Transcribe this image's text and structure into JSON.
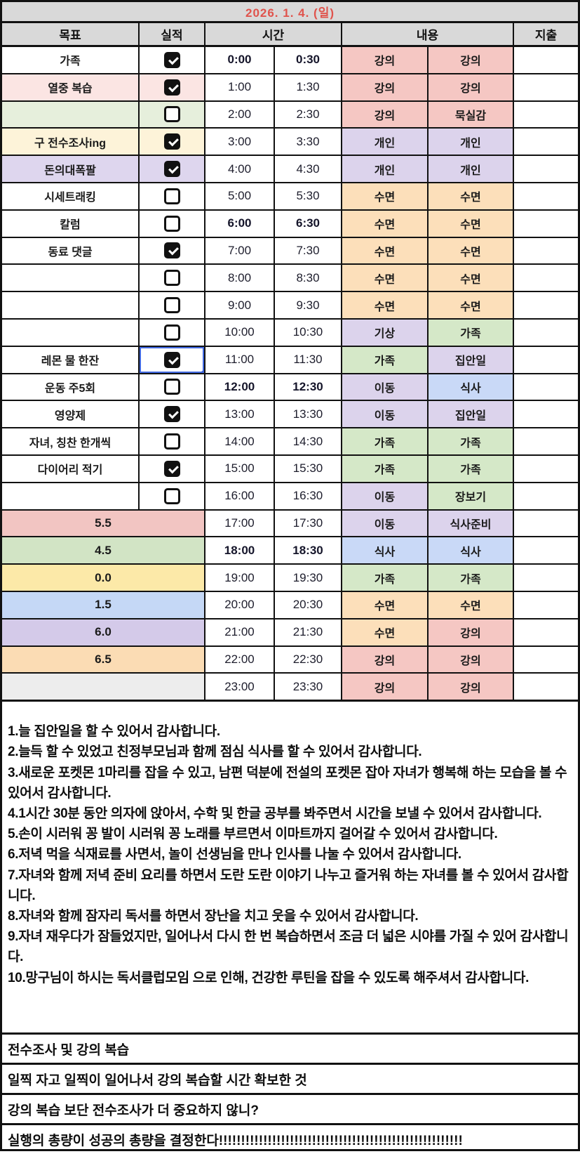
{
  "title": "2026. 1. 4. (일)",
  "colors": {
    "title_text": "#e0534c",
    "header_bg": "#d9d9d9",
    "selection_blue": "#4169e1",
    "content_pink": "#f5c7c3",
    "content_purple": "#dcd3ec",
    "content_peach": "#fcdfba",
    "content_green": "#d5e8c8",
    "content_blue": "#c9d9f7"
  },
  "headers": {
    "goal": "목표",
    "result": "실적",
    "time": "시간",
    "content": "내용",
    "expense": "지출"
  },
  "schedule_rows": [
    {
      "goal": "가족",
      "goal_bg": "#ffffff",
      "check": "checked",
      "t1": "0:00",
      "t2": "0:30",
      "bold": true,
      "c1": "강의",
      "c1_bg": "#f5c7c3",
      "c2": "강의",
      "c2_bg": "#f5c7c3"
    },
    {
      "goal": "열중 복습",
      "goal_bg": "#fbe5e3",
      "check": "checked",
      "t1": "1:00",
      "t2": "1:30",
      "bold": false,
      "c1": "강의",
      "c1_bg": "#f5c7c3",
      "c2": "강의",
      "c2_bg": "#f5c7c3"
    },
    {
      "goal": "",
      "goal_bg": "#e6efdc",
      "check": "unchecked",
      "t1": "2:00",
      "t2": "2:30",
      "bold": false,
      "c1": "강의",
      "c1_bg": "#f5c7c3",
      "c2": "묵실감",
      "c2_bg": "#f5c7c3"
    },
    {
      "goal": "구 전수조사ing",
      "goal_bg": "#fdf3d9",
      "check": "checked",
      "t1": "3:00",
      "t2": "3:30",
      "bold": false,
      "c1": "개인",
      "c1_bg": "#dcd3ec",
      "c2": "개인",
      "c2_bg": "#dcd3ec"
    },
    {
      "goal": "돈의대폭팔",
      "goal_bg": "#ded6ee",
      "check": "checked",
      "t1": "4:00",
      "t2": "4:30",
      "bold": false,
      "c1": "개인",
      "c1_bg": "#dcd3ec",
      "c2": "개인",
      "c2_bg": "#dcd3ec"
    },
    {
      "goal": "시세트래킹",
      "goal_bg": "#ffffff",
      "check": "unchecked",
      "t1": "5:00",
      "t2": "5:30",
      "bold": false,
      "c1": "수면",
      "c1_bg": "#fcdfba",
      "c2": "수면",
      "c2_bg": "#fcdfba"
    },
    {
      "goal": "칼럼",
      "goal_bg": "#ffffff",
      "check": "unchecked",
      "t1": "6:00",
      "t2": "6:30",
      "bold": true,
      "c1": "수면",
      "c1_bg": "#fcdfba",
      "c2": "수면",
      "c2_bg": "#fcdfba"
    },
    {
      "goal": "동료 댓글",
      "goal_bg": "#ffffff",
      "check": "checked",
      "t1": "7:00",
      "t2": "7:30",
      "bold": false,
      "c1": "수면",
      "c1_bg": "#fcdfba",
      "c2": "수면",
      "c2_bg": "#fcdfba"
    },
    {
      "goal": "",
      "goal_bg": "#ffffff",
      "check": "unchecked",
      "t1": "8:00",
      "t2": "8:30",
      "bold": false,
      "c1": "수면",
      "c1_bg": "#fcdfba",
      "c2": "수면",
      "c2_bg": "#fcdfba"
    },
    {
      "goal": "",
      "goal_bg": "#ffffff",
      "check": "unchecked",
      "t1": "9:00",
      "t2": "9:30",
      "bold": false,
      "c1": "수면",
      "c1_bg": "#fcdfba",
      "c2": "수면",
      "c2_bg": "#fcdfba"
    },
    {
      "goal": "",
      "goal_bg": "#ffffff",
      "check": "unchecked",
      "t1": "10:00",
      "t2": "10:30",
      "bold": false,
      "c1": "기상",
      "c1_bg": "#dcd3ec",
      "c2": "가족",
      "c2_bg": "#d5e8c8"
    },
    {
      "goal": "레몬 물 한잔",
      "goal_bg": "#ffffff",
      "check": "checked",
      "selected": true,
      "t1": "11:00",
      "t2": "11:30",
      "bold": false,
      "c1": "가족",
      "c1_bg": "#d5e8c8",
      "c2": "집안일",
      "c2_bg": "#dcd3ec"
    },
    {
      "goal": "운동 주5회",
      "goal_bg": "#ffffff",
      "check": "unchecked",
      "t1": "12:00",
      "t2": "12:30",
      "bold": true,
      "c1": "이동",
      "c1_bg": "#dcd3ec",
      "c2": "식사",
      "c2_bg": "#c9d9f7"
    },
    {
      "goal": "영양제",
      "goal_bg": "#ffffff",
      "check": "checked",
      "t1": "13:00",
      "t2": "13:30",
      "bold": false,
      "c1": "이동",
      "c1_bg": "#dcd3ec",
      "c2": "집안일",
      "c2_bg": "#dcd3ec"
    },
    {
      "goal": "자녀, 칭찬 한개씩",
      "goal_bg": "#ffffff",
      "check": "unchecked",
      "t1": "14:00",
      "t2": "14:30",
      "bold": false,
      "c1": "가족",
      "c1_bg": "#d5e8c8",
      "c2": "가족",
      "c2_bg": "#d5e8c8"
    },
    {
      "goal": "다이어리 적기",
      "goal_bg": "#ffffff",
      "check": "checked",
      "t1": "15:00",
      "t2": "15:30",
      "bold": false,
      "c1": "가족",
      "c1_bg": "#d5e8c8",
      "c2": "가족",
      "c2_bg": "#d5e8c8"
    },
    {
      "goal": "",
      "goal_bg": "#ffffff",
      "check": "unchecked",
      "t1": "16:00",
      "t2": "16:30",
      "bold": false,
      "c1": "이동",
      "c1_bg": "#dcd3ec",
      "c2": "장보기",
      "c2_bg": "#d5e8c8"
    },
    {
      "sum": "5.5",
      "sum_bg": "#f2c5c2",
      "t1": "17:00",
      "t2": "17:30",
      "bold": false,
      "c1": "이동",
      "c1_bg": "#dcd3ec",
      "c2": "식사준비",
      "c2_bg": "#dcd3ec"
    },
    {
      "sum": "4.5",
      "sum_bg": "#d2e4c5",
      "t1": "18:00",
      "t2": "18:30",
      "bold": true,
      "c1": "식사",
      "c1_bg": "#c9d9f7",
      "c2": "식사",
      "c2_bg": "#c9d9f7"
    },
    {
      "sum": "0.0",
      "sum_bg": "#fce9a8",
      "t1": "19:00",
      "t2": "19:30",
      "bold": false,
      "c1": "가족",
      "c1_bg": "#d5e8c8",
      "c2": "가족",
      "c2_bg": "#d5e8c8"
    },
    {
      "sum": "1.5",
      "sum_bg": "#c5d8f6",
      "t1": "20:00",
      "t2": "20:30",
      "bold": false,
      "c1": "수면",
      "c1_bg": "#fcdfba",
      "c2": "수면",
      "c2_bg": "#fcdfba"
    },
    {
      "sum": "6.0",
      "sum_bg": "#d4cae9",
      "t1": "21:00",
      "t2": "21:30",
      "bold": false,
      "c1": "수면",
      "c1_bg": "#fcdfba",
      "c2": "강의",
      "c2_bg": "#f5c7c3"
    },
    {
      "sum": "6.5",
      "sum_bg": "#fbdcb4",
      "t1": "22:00",
      "t2": "22:30",
      "bold": false,
      "c1": "강의",
      "c1_bg": "#f5c7c3",
      "c2": "강의",
      "c2_bg": "#f5c7c3"
    },
    {
      "sum": "",
      "sum_bg": "#ededed",
      "t1": "23:00",
      "t2": "23:30",
      "bold": false,
      "c1": "강의",
      "c1_bg": "#f5c7c3",
      "c2": "강의",
      "c2_bg": "#f5c7c3"
    }
  ],
  "gratitude_lines": [
    "1.늘 집안일을 할 수 있어서 감사합니다.",
    "2.늘득 할 수 있었고 친정부모님과 함께 점심 식사를 할 수 있어서 감사합니다.",
    "3.새로운 포켓몬 1마리를 잡을 수 있고, 남편 덕분에 전설의 포켓몬 잡아 자녀가 행복해 하는 모습을 볼 수 있어서 감사합니다.",
    "4.1시간 30분 동안 의자에 앉아서, 수학 및 한글 공부를 봐주면서 시간을 보낼 수 있어서 감사합니다.",
    "5.손이 시러워 꽁 발이 시러워 꽁 노래를 부르면서 이마트까지 걸어갈 수 있어서 감사합니다.",
    "6.저녁 먹을 식재료를 사면서, 놀이 선생님을 만나 인사를 나눌 수 있어서 감사합니다.",
    "7.자녀와 함께 저녁 준비 요리를 하면서 도란 도란 이야기 나누고 즐거워 하는 자녀를 볼 수 있어서 감사합니다.",
    "8.자녀와 함께 잠자리 독서를 하면서 장난을 치고 웃을 수 있어서 감사합니다.",
    "9.자녀 재우다가 잠들었지만, 일어나서 다시 한 번 복습하면서 조금 더 넓은 시야를 가질 수 있어 감사합니다.",
    "10.망구님이 하시는 독서클럽모임 으로 인해, 건강한 루틴을 잡을 수 있도록 해주셔서 감사합니다."
  ],
  "footer_rows": [
    "전수조사 및 강의 복습",
    "일찍 자고 일찍이 일어나서 강의 복습할 시간 확보한 것",
    "강의 복습 보단 전수조사가 더 중요하지 않니?",
    "실행의 총량이 성공의 총량을 결정한다!!!!!!!!!!!!!!!!!!!!!!!!!!!!!!!!!!!!!!!!!!!!!!!!!!!!!!!"
  ]
}
